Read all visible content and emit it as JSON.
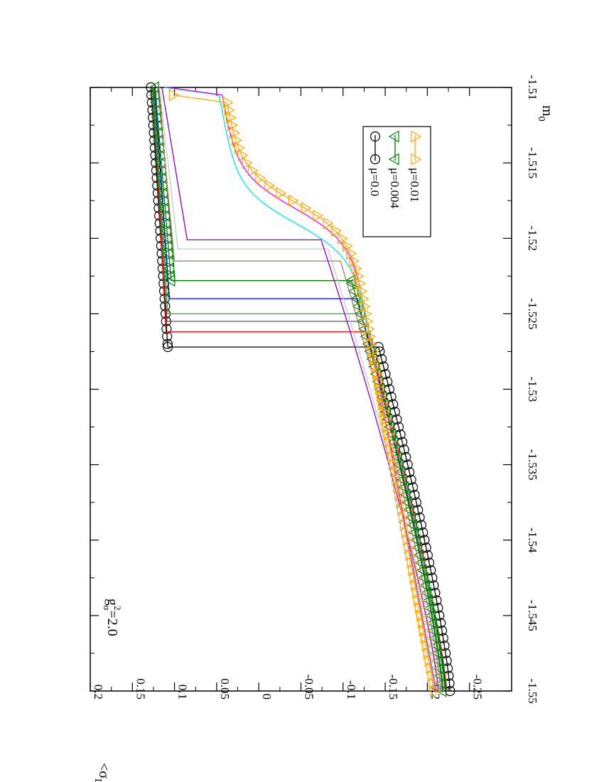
{
  "chart_data": {
    "type": "line",
    "title": "",
    "xlabel": "m",
    "xlabel_sub": "0",
    "ylabel_open": "<σ",
    "ylabel_sub": "L",
    "ylabel_close": ">",
    "xlim": [
      -1.55,
      -1.51
    ],
    "ylim": [
      -0.3,
      0.2
    ],
    "x_ticks": [
      -1.55,
      -1.545,
      -1.54,
      -1.535,
      -1.53,
      -1.525,
      -1.52,
      -1.515,
      -1.51
    ],
    "x_tick_labels": [
      "-1.55",
      "-1.545",
      "-1.54",
      "-1.535",
      "-1.53",
      "-1.525",
      "-1.52",
      "-1.515",
      "-1.51"
    ],
    "y_ticks": [
      -0.25,
      -0.2,
      -0.15,
      -0.1,
      -0.05,
      0,
      0.05,
      0.1,
      0.15,
      0.2
    ],
    "y_tick_labels": [
      "-0.25",
      "-0.2",
      "-0.15",
      "-0.1",
      "-0.05",
      "0",
      "0.05",
      "0.1",
      "0.15",
      "0.2"
    ],
    "grid": false,
    "legend_placement": "top-right (rotated view)",
    "annotation": {
      "base": "g",
      "sup": "2",
      "sub": "σ",
      "text": "=2.0"
    },
    "legend": [
      {
        "label": "μ=0.0",
        "marker": "circle",
        "color": "#000000"
      },
      {
        "label": "μ=0.004",
        "marker": "triangle-up",
        "color": "#008000"
      },
      {
        "label": "μ=0.01",
        "marker": "triangle-down",
        "color": "#ffa500"
      }
    ],
    "series": [
      {
        "name": "μ=0.0",
        "color": "#000000",
        "marker": "circle",
        "jump_at": -1.5272,
        "low_start": -0.227,
        "low_end": -0.142,
        "high_start": 0.108,
        "high_end": 0.128,
        "end_x": -1.51
      },
      {
        "color": "#ff0000",
        "marker": "none",
        "jump_at": -1.5262,
        "low_start": -0.223,
        "low_end": -0.128,
        "high_start": 0.11,
        "high_end": 0.126,
        "end_x": -1.51
      },
      {
        "color": "#555555",
        "marker": "none",
        "jump_at": -1.5255,
        "low_start": -0.221,
        "low_end": -0.123,
        "high_start": 0.109,
        "high_end": 0.126,
        "end_x": -1.51
      },
      {
        "color": "#00cc00",
        "marker": "none",
        "jump_at": -1.525,
        "low_start": -0.219,
        "low_end": -0.121,
        "high_start": 0.108,
        "high_end": 0.125,
        "end_x": -1.51
      },
      {
        "color": "#0000ff",
        "marker": "none",
        "jump_at": -1.524,
        "low_start": -0.218,
        "low_end": -0.117,
        "high_start": 0.106,
        "high_end": 0.124,
        "end_x": -1.51
      },
      {
        "name": "μ=0.004",
        "color": "#008000",
        "marker": "triangle-up",
        "jump_at": -1.5228,
        "low_start": -0.218,
        "low_end": -0.11,
        "high_start": 0.104,
        "high_end": 0.123,
        "end_x": -1.51
      },
      {
        "color": "#a0766a",
        "marker": "none",
        "jump_at": -1.5215,
        "low_start": -0.216,
        "low_end": -0.097,
        "high_start": 0.1,
        "high_end": 0.12,
        "end_x": -1.51
      },
      {
        "color": "#c8c8c8",
        "marker": "none",
        "jump_at": -1.5207,
        "low_start": -0.214,
        "low_end": -0.082,
        "high_start": 0.096,
        "high_end": 0.118,
        "end_x": -1.51
      },
      {
        "color": "#8b00c8",
        "marker": "none",
        "jump_at": -1.5201,
        "low_start": -0.213,
        "low_end": -0.074,
        "high_start": 0.085,
        "high_end": 0.115,
        "end_x": -1.51
      },
      {
        "color": "#00e5ee",
        "marker": "none",
        "smooth": true,
        "center": -1.519,
        "low_start": -0.211,
        "high_end": 0.112,
        "end_x": -1.51
      },
      {
        "color": "#ff00ff",
        "marker": "none",
        "smooth": true,
        "center": -1.518,
        "low_start": -0.21,
        "high_end": 0.107,
        "end_x": -1.51
      },
      {
        "name": "μ=0.01",
        "color": "#ffa500",
        "marker": "triangle-down",
        "smooth": true,
        "center": -1.5176,
        "low_start": -0.208,
        "high_end": 0.102,
        "end_x": -1.5101
      }
    ]
  }
}
